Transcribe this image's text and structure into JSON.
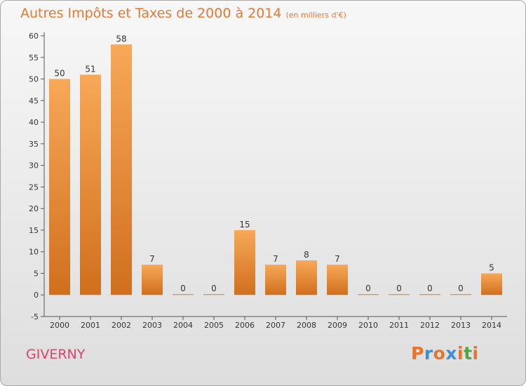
{
  "chart_data": {
    "type": "bar",
    "title": "Autres Impôts et Taxes de 2000 à 2014",
    "subtitle": "(en milliers d'€)",
    "categories": [
      "2000",
      "2001",
      "2002",
      "2003",
      "2004",
      "2005",
      "2006",
      "2007",
      "2008",
      "2009",
      "2010",
      "2011",
      "2012",
      "2013",
      "2014"
    ],
    "values": [
      50,
      51,
      58,
      7,
      0,
      0,
      15,
      7,
      8,
      7,
      0,
      0,
      0,
      0,
      5
    ],
    "ylim": [
      -5,
      60
    ],
    "yticks": [
      -5,
      0,
      5,
      10,
      15,
      20,
      25,
      30,
      35,
      40,
      45,
      50,
      55,
      60
    ],
    "grid": false,
    "colors": {
      "bar_light": "#f7a858",
      "bar_dark": "#d06f1e",
      "title": "#e07a35",
      "commune": "#d9446a"
    }
  },
  "commune": "GIVERNY",
  "logo": {
    "letters": [
      "P",
      "r",
      "o",
      "x",
      "i",
      "t",
      "i"
    ],
    "colors": [
      "#e8742a",
      "#3a8fd6",
      "#e8742a",
      "#3a8fd6",
      "#e8742a",
      "#49a83e",
      "#e8742a"
    ]
  }
}
